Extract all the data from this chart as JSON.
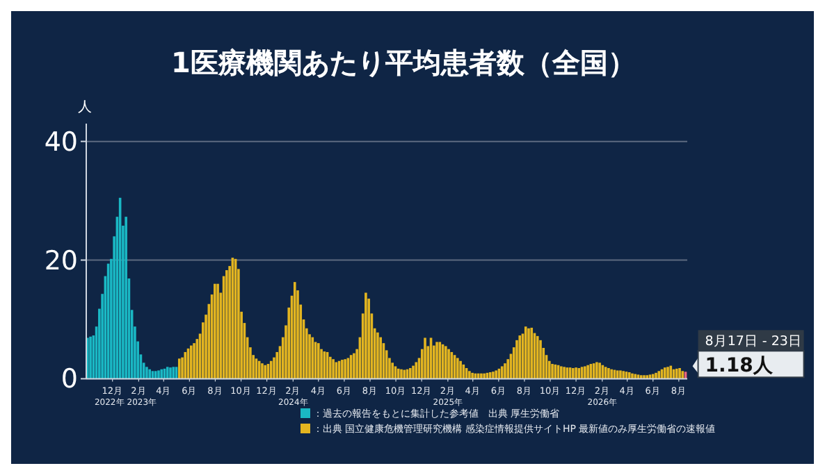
{
  "chart_data": {
    "type": "bar",
    "title": "1医療機関あたり平均患者数（全国）",
    "ylabel": "人",
    "ylim": [
      0,
      43
    ],
    "yticks": [
      0,
      20,
      40
    ],
    "grid": "y",
    "legend": "bottom",
    "xlim": [
      "2022-09-30",
      "2026-08-21"
    ],
    "xticks": [
      {
        "value": "2022-12-01",
        "label": "12月"
      },
      {
        "value": "2023-02-01",
        "label": "2月"
      },
      {
        "value": "2023-04-01",
        "label": "4月"
      },
      {
        "value": "2023-06-01",
        "label": "6月"
      },
      {
        "value": "2023-08-01",
        "label": "8月"
      },
      {
        "value": "2023-10-01",
        "label": "10月"
      },
      {
        "value": "2023-12-01",
        "label": "12月"
      },
      {
        "value": "2024-02-01",
        "label": "2月"
      },
      {
        "value": "2024-04-01",
        "label": "4月"
      },
      {
        "value": "2024-06-01",
        "label": "6月"
      },
      {
        "value": "2024-08-01",
        "label": "8月"
      },
      {
        "value": "2024-10-01",
        "label": "10月"
      },
      {
        "value": "2024-12-01",
        "label": "12月"
      },
      {
        "value": "2025-02-01",
        "label": "2月"
      },
      {
        "value": "2025-04-01",
        "label": "4月"
      },
      {
        "value": "2025-06-01",
        "label": "6月"
      },
      {
        "value": "2025-08-01",
        "label": "8月"
      },
      {
        "value": "2025-10-01",
        "label": "10月"
      },
      {
        "value": "2025-12-01",
        "label": "12月"
      },
      {
        "value": "2026-02-01",
        "label": "2月"
      },
      {
        "value": "2026-04-01",
        "label": "4月"
      },
      {
        "value": "2026-06-01",
        "label": "6月"
      },
      {
        "value": "2026-08-01",
        "label": "8月"
      }
    ],
    "annotations": [
      "2022年",
      "2023年",
      "2024年",
      "2025年",
      "2026年",
      {
        "text": "8月17日 - 23日",
        "x": "2026-08-17",
        "y": 1.18
      },
      {
        "text": "1.18人",
        "x": "2026-08-17",
        "y": 1.18
      }
    ],
    "series": [
      {
        "name": "：過去の報告をもとに集計した参考値　出典 厚生労働省",
        "color": "#1ab8c4",
        "x": [
          "2022-10-03",
          "2022-10-10",
          "2022-10-17",
          "2022-10-24",
          "2022-10-31",
          "2022-11-07",
          "2022-11-14",
          "2022-11-21",
          "2022-11-28",
          "2022-12-05",
          "2022-12-12",
          "2022-12-19",
          "2022-12-26",
          "2023-01-02",
          "2023-01-09",
          "2023-01-16",
          "2023-01-23",
          "2023-01-30",
          "2023-02-06",
          "2023-02-13",
          "2023-02-20",
          "2023-02-27",
          "2023-03-06",
          "2023-03-13",
          "2023-03-20",
          "2023-03-27",
          "2023-04-03",
          "2023-04-10",
          "2023-04-17",
          "2023-04-24",
          "2023-05-01"
        ],
        "values": [
          6.9,
          7.1,
          7.3,
          8.8,
          11.8,
          14.3,
          17.3,
          19.4,
          20.2,
          24.0,
          27.3,
          30.5,
          25.8,
          27.3,
          16.9,
          11.6,
          8.8,
          6.3,
          4.1,
          2.7,
          2.0,
          1.6,
          1.3,
          1.3,
          1.4,
          1.6,
          1.7,
          2.0,
          1.9,
          2.0,
          2.0
        ]
      },
      {
        "name": "：出典 国立健康危機管理研究機構 感染症情報提供サイトHP 最新値のみ厚生労働省の速報値",
        "color": "#e3b520",
        "x": [
          "2023-05-08",
          "2023-05-15",
          "2023-05-22",
          "2023-05-29",
          "2023-06-05",
          "2023-06-12",
          "2023-06-19",
          "2023-06-26",
          "2023-07-03",
          "2023-07-10",
          "2023-07-17",
          "2023-07-24",
          "2023-07-31",
          "2023-08-07",
          "2023-08-14",
          "2023-08-21",
          "2023-08-28",
          "2023-09-04",
          "2023-09-11",
          "2023-09-18",
          "2023-09-25",
          "2023-10-02",
          "2023-10-09",
          "2023-10-16",
          "2023-10-23",
          "2023-10-30",
          "2023-11-06",
          "2023-11-13",
          "2023-11-20",
          "2023-11-27",
          "2023-12-04",
          "2023-12-11",
          "2023-12-18",
          "2023-12-25",
          "2024-01-01",
          "2024-01-08",
          "2024-01-15",
          "2024-01-22",
          "2024-01-29",
          "2024-02-05",
          "2024-02-12",
          "2024-02-19",
          "2024-02-26",
          "2024-03-04",
          "2024-03-11",
          "2024-03-18",
          "2024-03-25",
          "2024-04-01",
          "2024-04-08",
          "2024-04-15",
          "2024-04-22",
          "2024-04-29",
          "2024-05-06",
          "2024-05-13",
          "2024-05-20",
          "2024-05-27",
          "2024-06-03",
          "2024-06-10",
          "2024-06-17",
          "2024-06-24",
          "2024-07-01",
          "2024-07-08",
          "2024-07-15",
          "2024-07-22",
          "2024-07-29",
          "2024-08-05",
          "2024-08-12",
          "2024-08-19",
          "2024-08-26",
          "2024-09-02",
          "2024-09-09",
          "2024-09-16",
          "2024-09-23",
          "2024-09-30",
          "2024-10-07",
          "2024-10-14",
          "2024-10-21",
          "2024-10-28",
          "2024-11-04",
          "2024-11-11",
          "2024-11-18",
          "2024-11-25",
          "2024-12-02",
          "2024-12-09",
          "2024-12-16",
          "2024-12-23",
          "2024-12-30",
          "2025-01-06",
          "2025-01-13",
          "2025-01-20",
          "2025-01-27",
          "2025-02-03",
          "2025-02-10",
          "2025-02-17",
          "2025-02-24",
          "2025-03-03",
          "2025-03-10",
          "2025-03-17",
          "2025-03-24",
          "2025-03-31",
          "2025-04-07",
          "2025-04-14",
          "2025-04-21",
          "2025-04-28",
          "2025-05-05",
          "2025-05-12",
          "2025-05-19",
          "2025-05-26",
          "2025-06-02",
          "2025-06-09",
          "2025-06-16",
          "2025-06-23",
          "2025-06-30",
          "2025-07-07",
          "2025-07-14",
          "2025-07-21",
          "2025-07-28",
          "2025-08-04",
          "2025-08-11",
          "2025-08-18",
          "2025-08-25",
          "2025-09-01",
          "2025-09-08",
          "2025-09-15",
          "2025-09-22",
          "2025-09-29",
          "2025-10-06",
          "2025-10-13",
          "2025-10-20",
          "2025-10-27",
          "2025-11-03",
          "2025-11-10",
          "2025-11-17",
          "2025-11-24",
          "2025-12-01",
          "2025-12-08",
          "2025-12-15",
          "2025-12-22",
          "2025-12-29",
          "2026-01-05",
          "2026-01-12",
          "2026-01-19",
          "2026-01-26",
          "2026-02-02",
          "2026-02-09",
          "2026-02-16",
          "2026-02-23",
          "2026-03-02",
          "2026-03-09",
          "2026-03-16",
          "2026-03-23",
          "2026-03-30",
          "2026-04-06",
          "2026-04-13",
          "2026-04-20",
          "2026-04-27",
          "2026-05-04",
          "2026-05-11",
          "2026-05-18",
          "2026-05-25",
          "2026-06-01",
          "2026-06-08",
          "2026-06-15",
          "2026-06-22",
          "2026-06-29",
          "2026-07-06",
          "2026-07-13",
          "2026-07-20",
          "2026-07-27",
          "2026-08-03",
          "2026-08-10"
        ],
        "values": [
          3.4,
          3.6,
          4.5,
          5.1,
          5.6,
          6.0,
          6.7,
          7.6,
          9.5,
          10.8,
          12.6,
          14.2,
          16.0,
          16.0,
          14.5,
          17.3,
          18.3,
          19.0,
          20.4,
          20.2,
          18.5,
          11.3,
          9.4,
          7.0,
          5.3,
          4.0,
          3.4,
          3.0,
          2.6,
          2.3,
          2.5,
          3.0,
          3.6,
          4.5,
          5.5,
          7.0,
          9.0,
          12.0,
          14.0,
          16.3,
          14.9,
          12.5,
          10.0,
          8.5,
          7.5,
          7.0,
          6.2,
          6.0,
          5.0,
          4.6,
          4.5,
          3.7,
          3.3,
          2.8,
          3.0,
          3.2,
          3.3,
          3.5,
          4.0,
          4.3,
          5.0,
          7.0,
          11.0,
          14.5,
          13.5,
          11.0,
          8.5,
          7.8,
          7.0,
          6.0,
          4.8,
          3.5,
          2.7,
          2.1,
          1.7,
          1.6,
          1.5,
          1.6,
          1.8,
          2.2,
          2.8,
          3.5,
          5.0,
          6.9,
          5.5,
          6.9,
          5.6,
          6.2,
          6.2,
          5.8,
          5.5,
          5.0,
          4.5,
          4.0,
          3.5,
          3.0,
          2.4,
          1.8,
          1.3,
          1.0,
          0.9,
          0.9,
          0.9,
          0.9,
          1.0,
          1.1,
          1.2,
          1.4,
          1.7,
          2.1,
          2.6,
          3.3,
          4.2,
          5.3,
          6.5,
          7.3,
          7.6,
          8.8,
          8.5,
          8.6,
          7.7,
          7.2,
          6.5,
          5.2,
          4.0,
          3.0,
          2.5,
          2.4,
          2.3,
          2.1,
          2.0,
          1.9,
          1.9,
          1.8,
          1.9,
          1.8,
          2.0,
          2.1,
          2.3,
          2.5,
          2.6,
          2.8,
          2.7,
          2.3,
          2.0,
          1.8,
          1.6,
          1.5,
          1.4,
          1.4,
          1.3,
          1.2,
          1.1,
          0.9,
          0.8,
          0.7,
          0.6,
          0.6,
          0.6,
          0.7,
          0.8,
          1.0,
          1.3,
          1.6,
          1.9,
          2.0,
          2.2,
          1.6,
          1.7,
          1.8,
          1.3
        ]
      },
      {
        "color": "#e8647e",
        "x": [
          "2026-08-17"
        ],
        "values": [
          1.18
        ]
      }
    ]
  }
}
